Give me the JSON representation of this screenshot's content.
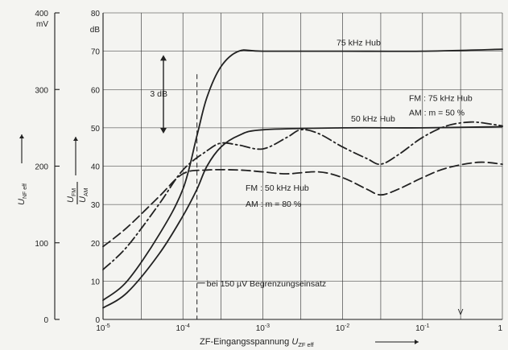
{
  "chart_data": {
    "type": "line",
    "x_scale": "log",
    "xlim": [
      1e-05,
      1
    ],
    "x_ticks": [
      {
        "v": 1e-05,
        "base": "10",
        "exp": "-5"
      },
      {
        "v": 0.0001,
        "base": "10",
        "exp": "-4"
      },
      {
        "v": 0.001,
        "base": "10",
        "exp": "-3"
      },
      {
        "v": 0.01,
        "base": "10",
        "exp": "-2"
      },
      {
        "v": 0.1,
        "base": "10",
        "exp": "-1"
      },
      {
        "v": 1,
        "base": "1",
        "exp": ""
      }
    ],
    "x_unit": "V",
    "xlabel": {
      "text": "ZF-Eingangsspannung U",
      "sub": "ZF eff"
    },
    "y_left": {
      "unit": "mV",
      "label": "U",
      "label_sub": "NF eff",
      "lim": [
        0,
        400
      ],
      "ticks": [
        "0",
        "100",
        "200",
        "300",
        "400"
      ]
    },
    "y_right": {
      "unit": "dB",
      "label_num": "U",
      "label_num_sub": "FM",
      "label_den": "U",
      "label_den_sub": "AM",
      "lim": [
        0,
        80
      ],
      "ticks": [
        "0",
        "10",
        "20",
        "30",
        "40",
        "50",
        "60",
        "70",
        "80"
      ]
    },
    "grid": true,
    "series": [
      {
        "style": "solid",
        "values": [
          [
            1e-05,
            5
          ],
          [
            2e-05,
            10
          ],
          [
            5e-05,
            22
          ],
          [
            0.0001,
            34
          ],
          [
            0.00015,
            48
          ],
          [
            0.0002,
            58
          ],
          [
            0.0003,
            66
          ],
          [
            0.0005,
            70
          ],
          [
            0.001,
            70
          ],
          [
            0.01,
            70
          ],
          [
            0.1,
            70
          ],
          [
            1,
            70.5
          ]
        ]
      },
      {
        "style": "solid",
        "values": [
          [
            1e-05,
            3
          ],
          [
            2e-05,
            7
          ],
          [
            5e-05,
            17
          ],
          [
            0.0001,
            27
          ],
          [
            0.00015,
            34
          ],
          [
            0.0002,
            40
          ],
          [
            0.0003,
            45
          ],
          [
            0.0005,
            48
          ],
          [
            0.001,
            49.5
          ],
          [
            0.01,
            50
          ],
          [
            0.1,
            50
          ],
          [
            1,
            50.3
          ]
        ]
      },
      {
        "style": "dashdot",
        "values": [
          [
            1e-05,
            13
          ],
          [
            2e-05,
            19
          ],
          [
            5e-05,
            30
          ],
          [
            0.0001,
            39
          ],
          [
            0.0002,
            44
          ],
          [
            0.0003,
            46
          ],
          [
            0.0005,
            45.5
          ],
          [
            0.001,
            44.5
          ],
          [
            0.002,
            47.5
          ],
          [
            0.003,
            49.5
          ],
          [
            0.005,
            48.5
          ],
          [
            0.01,
            45
          ],
          [
            0.02,
            42
          ],
          [
            0.03,
            40.5
          ],
          [
            0.05,
            43
          ],
          [
            0.1,
            47.5
          ],
          [
            0.2,
            50.5
          ],
          [
            0.4,
            51.5
          ],
          [
            0.7,
            51
          ],
          [
            1,
            50.5
          ]
        ]
      },
      {
        "style": "dashed",
        "values": [
          [
            1e-05,
            19
          ],
          [
            2e-05,
            24
          ],
          [
            5e-05,
            32
          ],
          [
            0.0001,
            38
          ],
          [
            0.0002,
            39
          ],
          [
            0.0005,
            39
          ],
          [
            0.001,
            38.5
          ],
          [
            0.002,
            38
          ],
          [
            0.005,
            38.5
          ],
          [
            0.01,
            37
          ],
          [
            0.02,
            34
          ],
          [
            0.03,
            32.5
          ],
          [
            0.05,
            34
          ],
          [
            0.1,
            37
          ],
          [
            0.2,
            39.5
          ],
          [
            0.5,
            41
          ],
          [
            1,
            40.5
          ]
        ]
      }
    ],
    "annotations": [
      {
        "id": "hub75",
        "text": "75 kHz Hub"
      },
      {
        "id": "hub50",
        "text": "50 kHz Hub"
      },
      {
        "id": "fm75",
        "text": "FM : 75 kHz Hub"
      },
      {
        "id": "am50",
        "text": "AM : m = 50 %"
      },
      {
        "id": "fm50",
        "text": "FM : 50 kHz Hub"
      },
      {
        "id": "am80",
        "text": "AM : m = 80 %"
      },
      {
        "id": "db3",
        "text": "3 dB"
      },
      {
        "id": "limit",
        "text": "bei 150 µV Begrenzungseinsatz"
      }
    ],
    "marker_x": 0.00015
  }
}
